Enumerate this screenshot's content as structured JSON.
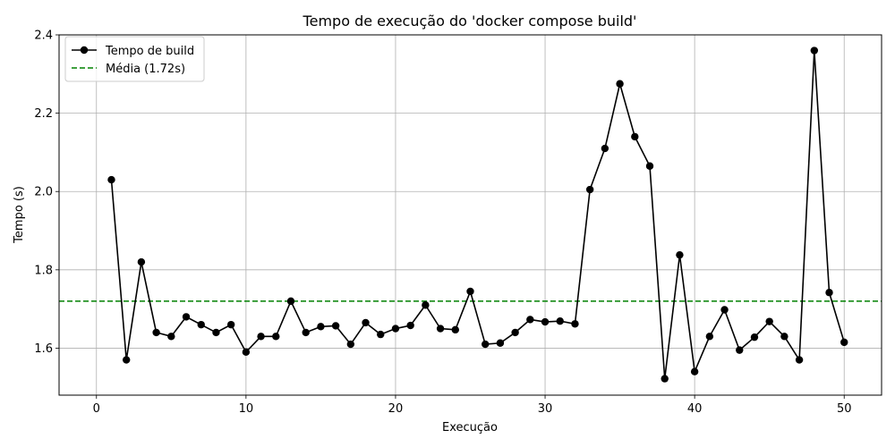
{
  "chart_data": {
    "type": "line",
    "title": "Tempo de execução do 'docker compose build'",
    "xlabel": "Execução",
    "ylabel": "Tempo (s)",
    "xlim": [
      -2.5,
      52.5
    ],
    "ylim": [
      1.48,
      2.4
    ],
    "xticks": [
      0,
      10,
      20,
      30,
      40,
      50
    ],
    "yticks": [
      1.6,
      1.8,
      2.0,
      2.2,
      2.4
    ],
    "xtick_labels": [
      "0",
      "10",
      "20",
      "30",
      "40",
      "50"
    ],
    "ytick_labels": [
      "1.6",
      "1.8",
      "2.0",
      "2.2",
      "2.4"
    ],
    "grid": true,
    "legend_position": "top-left",
    "series": [
      {
        "name": "Tempo de build",
        "color": "#000000",
        "marker": "circle",
        "x": [
          1,
          2,
          3,
          4,
          5,
          6,
          7,
          8,
          9,
          10,
          11,
          12,
          13,
          14,
          15,
          16,
          17,
          18,
          19,
          20,
          21,
          22,
          23,
          24,
          25,
          26,
          27,
          28,
          29,
          30,
          31,
          32,
          33,
          34,
          35,
          36,
          37,
          38,
          39,
          40,
          41,
          42,
          43,
          44,
          45,
          46,
          47,
          48,
          49,
          50
        ],
        "y": [
          2.03,
          1.57,
          1.82,
          1.64,
          1.63,
          1.68,
          1.66,
          1.64,
          1.66,
          1.59,
          1.63,
          1.63,
          1.72,
          1.64,
          1.655,
          1.657,
          1.61,
          1.665,
          1.635,
          1.65,
          1.658,
          1.71,
          1.65,
          1.647,
          1.745,
          1.61,
          1.613,
          1.64,
          1.673,
          1.667,
          1.669,
          1.662,
          2.005,
          2.11,
          2.275,
          2.14,
          2.065,
          1.522,
          1.838,
          1.54,
          1.63,
          1.698,
          1.595,
          1.628,
          1.668,
          1.63,
          1.57,
          2.36,
          1.742,
          1.615
        ]
      }
    ],
    "reference_lines": [
      {
        "name": "Média (1.72s)",
        "y": 1.72,
        "color": "#008000",
        "style": "dashed"
      }
    ]
  }
}
